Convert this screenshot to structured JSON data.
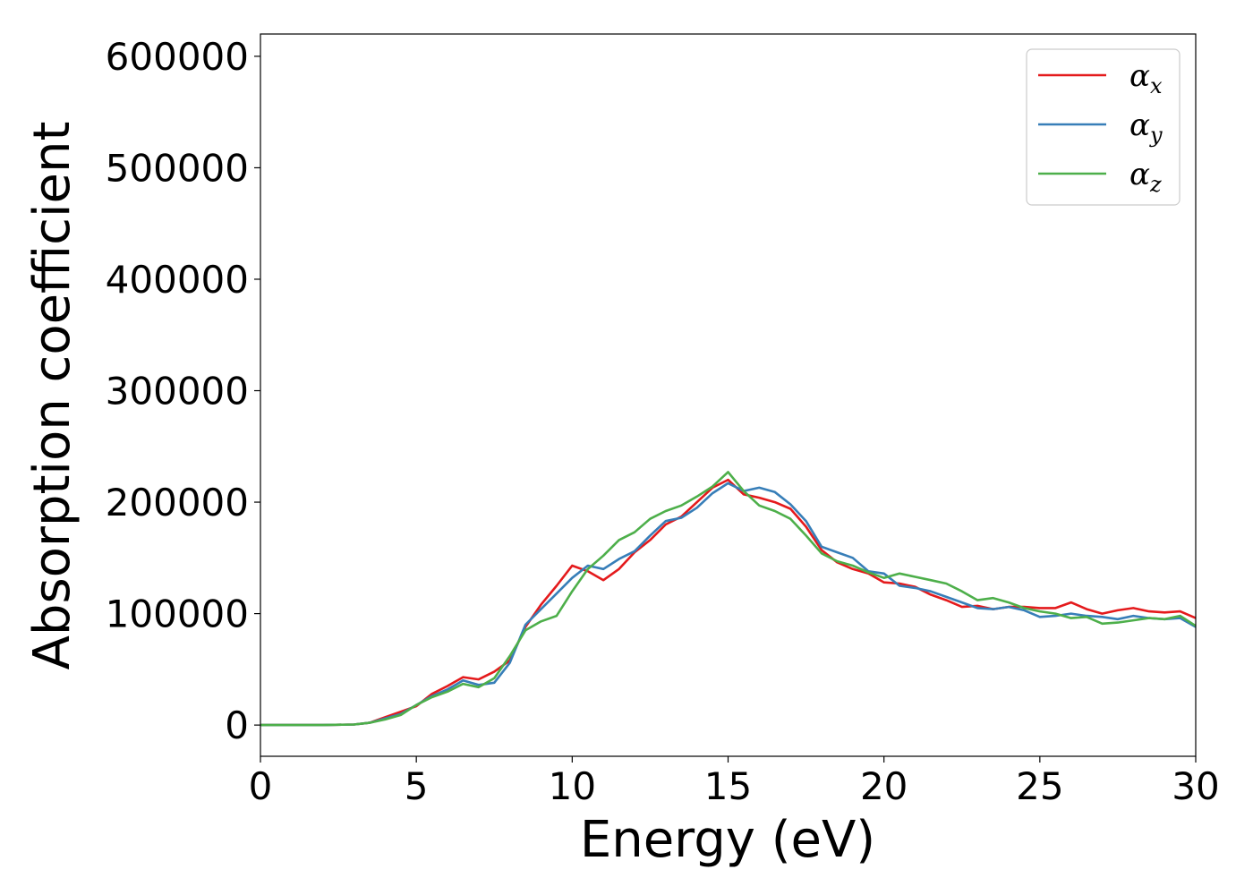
{
  "chart_data": {
    "type": "line",
    "xlabel": "Energy (eV)",
    "ylabel": "Absorption coefficient",
    "xlim": [
      0,
      30
    ],
    "ylim": [
      -28000,
      620000
    ],
    "xticks": [
      0,
      5,
      10,
      15,
      20,
      25,
      30
    ],
    "yticks": [
      0,
      100000,
      200000,
      300000,
      400000,
      500000,
      600000
    ],
    "xtick_labels": [
      "0",
      "5",
      "10",
      "15",
      "20",
      "25",
      "30"
    ],
    "ytick_labels": [
      "0",
      "100000",
      "200000",
      "300000",
      "400000",
      "500000",
      "600000"
    ],
    "grid": false,
    "legend_position": "top-right",
    "series": [
      {
        "name": "α",
        "subscript": "x",
        "color": "#e41a1c",
        "x": [
          0,
          1,
          2,
          3,
          3.5,
          4,
          4.5,
          5,
          5.5,
          6,
          6.5,
          7,
          7.5,
          8,
          8.5,
          9,
          9.5,
          10,
          10.5,
          11,
          11.5,
          12,
          12.5,
          13,
          13.5,
          14,
          14.5,
          15,
          15.5,
          16,
          16.5,
          17,
          17.5,
          18,
          18.5,
          19,
          19.5,
          20,
          20.5,
          21,
          21.5,
          22,
          22.5,
          23,
          23.5,
          24,
          24.5,
          25,
          25.5,
          26,
          26.5,
          27,
          27.5,
          28,
          28.5,
          29,
          29.5,
          30
        ],
        "y": [
          0,
          0,
          0,
          500,
          2000,
          7000,
          12000,
          17000,
          28000,
          35000,
          43000,
          41000,
          48000,
          58000,
          88000,
          108000,
          125000,
          143000,
          138000,
          130000,
          140000,
          155000,
          166000,
          180000,
          187000,
          200000,
          213000,
          220000,
          207000,
          204000,
          200000,
          194000,
          178000,
          157000,
          146000,
          140000,
          136000,
          128000,
          127000,
          124000,
          117000,
          112000,
          106000,
          107000,
          104000,
          106000,
          106000,
          105000,
          105000,
          110000,
          104000,
          100000,
          103000,
          105000,
          102000,
          101000,
          102000,
          96000
        ]
      },
      {
        "name": "α",
        "subscript": "y",
        "color": "#377eb8",
        "x": [
          0,
          1,
          2,
          3,
          3.5,
          4,
          4.5,
          5,
          5.5,
          6,
          6.5,
          7,
          7.5,
          8,
          8.5,
          9,
          9.5,
          10,
          10.5,
          11,
          11.5,
          12,
          12.5,
          13,
          13.5,
          14,
          14.5,
          15,
          15.5,
          16,
          16.5,
          17,
          17.5,
          18,
          18.5,
          19,
          19.5,
          20,
          20.5,
          21,
          21.5,
          22,
          22.5,
          23,
          23.5,
          24,
          24.5,
          25,
          25.5,
          26,
          26.5,
          27,
          27.5,
          28,
          28.5,
          29,
          29.5,
          30
        ],
        "y": [
          0,
          0,
          0,
          500,
          2000,
          6000,
          10000,
          18000,
          26000,
          32000,
          40000,
          36000,
          38000,
          56000,
          90000,
          104000,
          118000,
          132000,
          143000,
          140000,
          149000,
          156000,
          170000,
          183000,
          186000,
          195000,
          208000,
          217000,
          210000,
          213000,
          209000,
          198000,
          183000,
          160000,
          155000,
          150000,
          138000,
          136000,
          125000,
          123000,
          120000,
          115000,
          110000,
          105000,
          104000,
          106000,
          103000,
          97000,
          98000,
          100000,
          98000,
          97000,
          95000,
          98000,
          96000,
          95000,
          96000,
          88000
        ]
      },
      {
        "name": "α",
        "subscript": "z",
        "color": "#4daf4a",
        "x": [
          0,
          1,
          2,
          3,
          3.5,
          4,
          4.5,
          5,
          5.5,
          6,
          6.5,
          7,
          7.5,
          8,
          8.5,
          9,
          9.5,
          10,
          10.5,
          11,
          11.5,
          12,
          12.5,
          13,
          13.5,
          14,
          14.5,
          15,
          15.5,
          16,
          16.5,
          17,
          17.5,
          18,
          18.5,
          19,
          19.5,
          20,
          20.5,
          21,
          21.5,
          22,
          22.5,
          23,
          23.5,
          24,
          24.5,
          25,
          25.5,
          26,
          26.5,
          27,
          27.5,
          28,
          28.5,
          29,
          29.5,
          30
        ],
        "y": [
          0,
          0,
          0,
          500,
          2000,
          5000,
          9000,
          18000,
          25000,
          30000,
          37000,
          34000,
          42000,
          62000,
          85000,
          93000,
          98000,
          120000,
          140000,
          152000,
          166000,
          173000,
          185000,
          192000,
          197000,
          205000,
          214000,
          227000,
          210000,
          197000,
          192000,
          185000,
          170000,
          154000,
          147000,
          143000,
          137000,
          132000,
          136000,
          133000,
          130000,
          127000,
          120000,
          112000,
          114000,
          110000,
          105000,
          102000,
          100000,
          96000,
          97000,
          91000,
          92000,
          94000,
          96000,
          95000,
          98000,
          89000
        ]
      }
    ]
  }
}
